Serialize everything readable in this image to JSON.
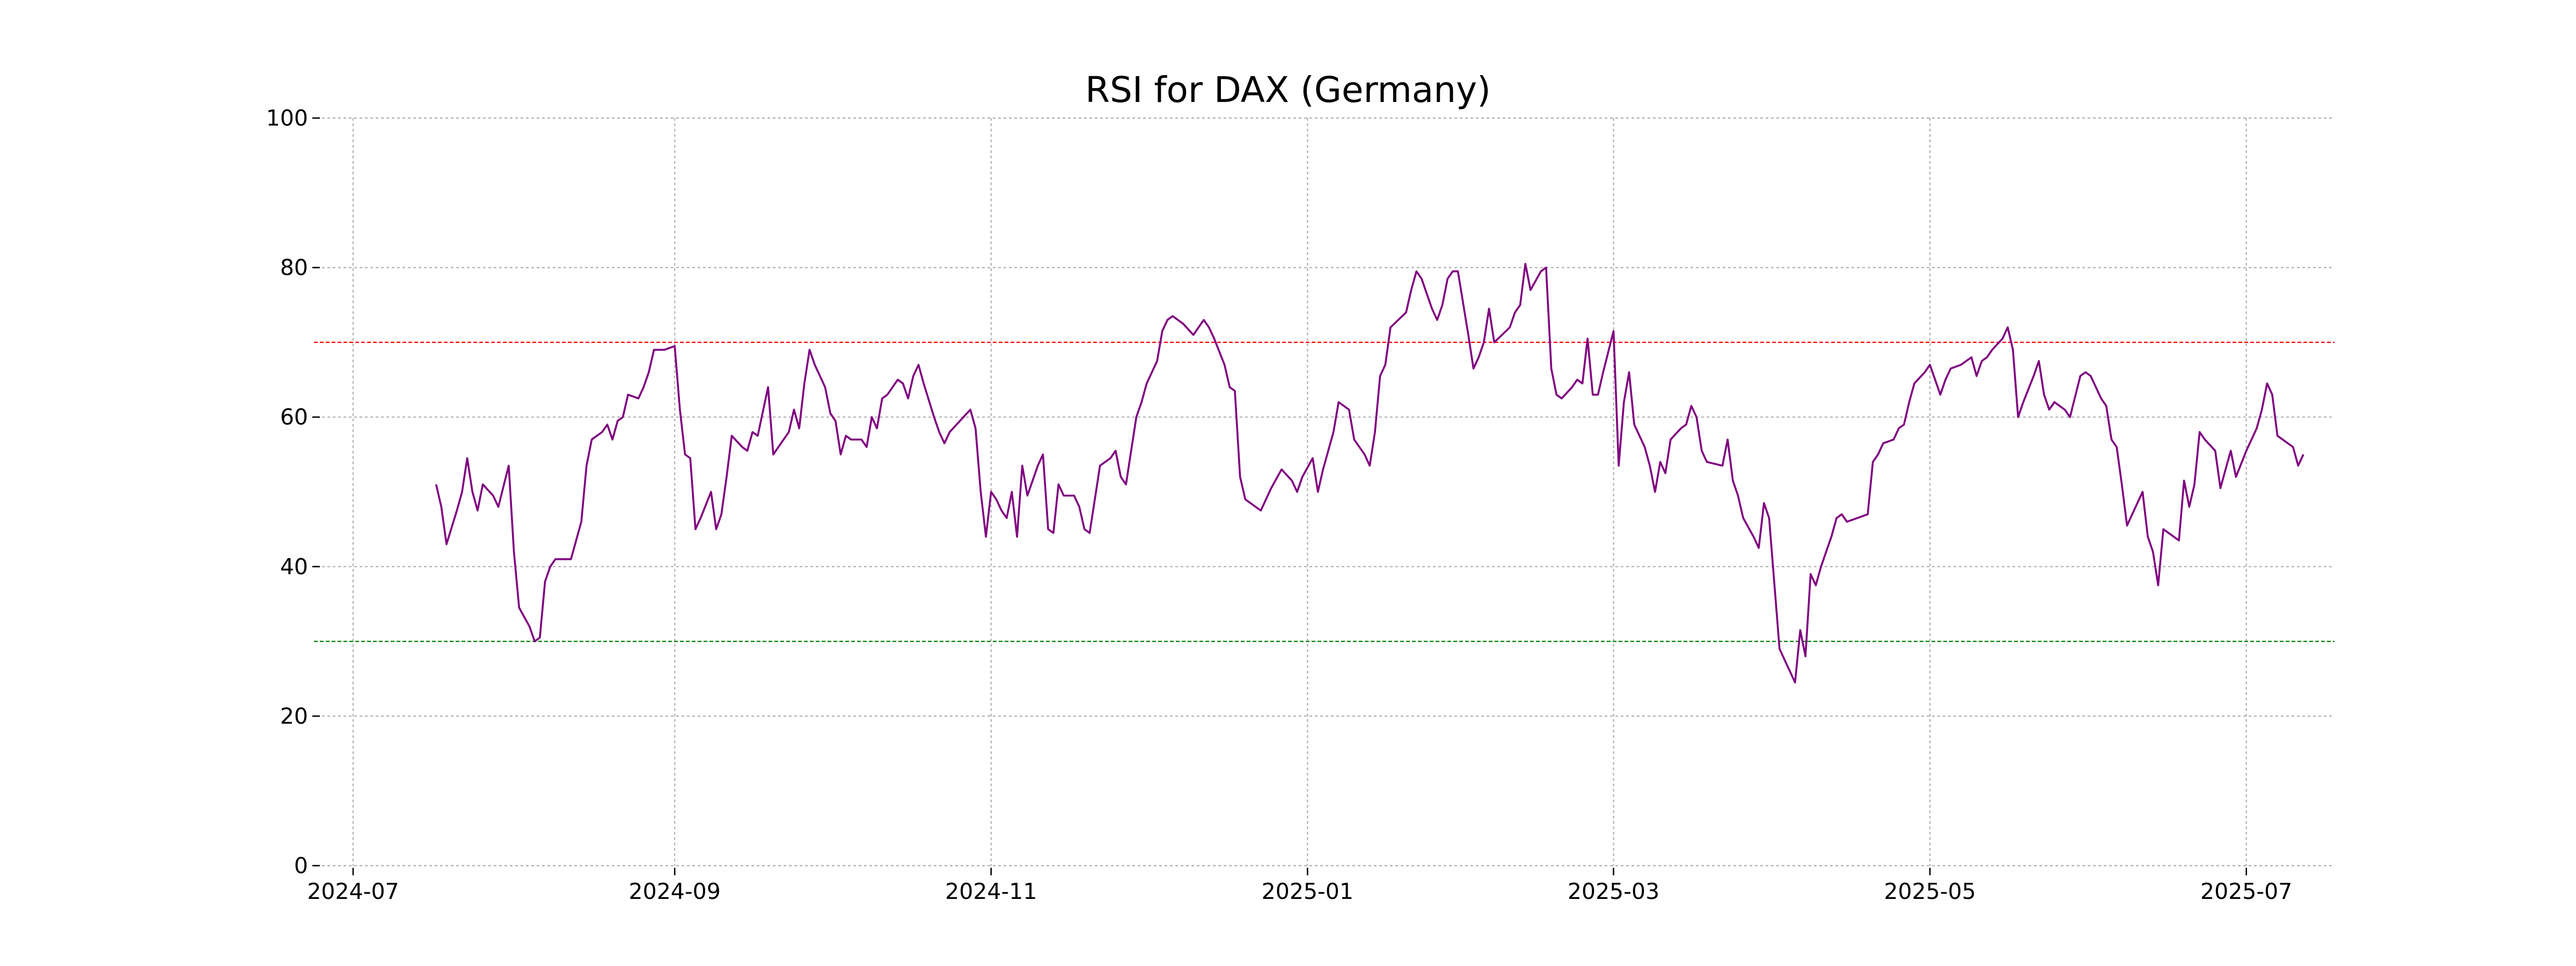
{
  "chart_data": {
    "type": "line",
    "title": "RSI for DAX (Germany)",
    "xlabel": "",
    "ylabel": "",
    "ylim": [
      0,
      100
    ],
    "yticks": [
      0,
      20,
      40,
      60,
      80,
      100
    ],
    "ytick_labels": [
      "0",
      "20",
      "40",
      "60",
      "80",
      "100"
    ],
    "xlim_days": [
      -6,
      382
    ],
    "xticks": [
      {
        "label": "2024-07",
        "day": 0
      },
      {
        "label": "2024-09",
        "day": 62
      },
      {
        "label": "2024-11",
        "day": 123
      },
      {
        "label": "2025-01",
        "day": 184
      },
      {
        "label": "2025-03",
        "day": 243
      },
      {
        "label": "2025-05",
        "day": 304
      },
      {
        "label": "2025-07",
        "day": 365
      }
    ],
    "grid": true,
    "reference_lines": [
      {
        "name": "overbought",
        "value": 70,
        "color": "#ff0000"
      },
      {
        "name": "oversold",
        "value": 30,
        "color": "#008000"
      }
    ],
    "series": [
      {
        "name": "RSI",
        "color": "#800080",
        "points": [
          [
            16,
            51
          ],
          [
            17,
            48
          ],
          [
            18,
            43
          ],
          [
            20,
            47.5
          ],
          [
            21,
            50
          ],
          [
            22,
            54.5
          ],
          [
            23,
            50
          ],
          [
            24,
            47.5
          ],
          [
            25,
            51
          ],
          [
            27,
            49.5
          ],
          [
            28,
            48
          ],
          [
            30,
            53.5
          ],
          [
            31,
            42
          ],
          [
            32,
            34.5
          ],
          [
            34,
            32
          ],
          [
            35,
            30
          ],
          [
            36,
            30.5
          ],
          [
            37,
            38
          ],
          [
            38,
            40
          ],
          [
            39,
            41
          ],
          [
            42,
            41
          ],
          [
            44,
            46
          ],
          [
            45,
            53.5
          ],
          [
            46,
            57
          ],
          [
            48,
            58
          ],
          [
            49,
            59
          ],
          [
            50,
            57
          ],
          [
            51,
            59.5
          ],
          [
            52,
            60
          ],
          [
            53,
            63
          ],
          [
            55,
            62.5
          ],
          [
            56,
            64
          ],
          [
            57,
            66
          ],
          [
            58,
            69
          ],
          [
            59,
            69
          ],
          [
            60,
            69
          ],
          [
            62,
            69.5
          ],
          [
            63,
            61
          ],
          [
            64,
            55
          ],
          [
            65,
            54.5
          ],
          [
            66,
            45
          ],
          [
            67,
            46.5
          ],
          [
            69,
            50
          ],
          [
            70,
            45
          ],
          [
            71,
            47
          ],
          [
            72,
            52
          ],
          [
            73,
            57.5
          ],
          [
            75,
            56
          ],
          [
            76,
            55.5
          ],
          [
            77,
            58
          ],
          [
            78,
            57.5
          ],
          [
            80,
            64
          ],
          [
            81,
            55
          ],
          [
            82,
            56
          ],
          [
            84,
            58
          ],
          [
            85,
            61
          ],
          [
            86,
            58.5
          ],
          [
            87,
            64.5
          ],
          [
            88,
            69
          ],
          [
            89,
            67
          ],
          [
            91,
            64
          ],
          [
            92,
            60.5
          ],
          [
            93,
            59.5
          ],
          [
            94,
            55
          ],
          [
            95,
            57.5
          ],
          [
            96,
            57
          ],
          [
            98,
            57
          ],
          [
            99,
            56
          ],
          [
            100,
            60
          ],
          [
            101,
            58.5
          ],
          [
            102,
            62.5
          ],
          [
            103,
            63
          ],
          [
            105,
            65
          ],
          [
            106,
            64.5
          ],
          [
            107,
            62.5
          ],
          [
            108,
            65.5
          ],
          [
            109,
            67
          ],
          [
            110,
            64.5
          ],
          [
            112,
            60
          ],
          [
            113,
            58
          ],
          [
            114,
            56.5
          ],
          [
            115,
            58
          ],
          [
            117,
            59.5
          ],
          [
            119,
            61
          ],
          [
            120,
            58.5
          ],
          [
            121,
            50
          ],
          [
            122,
            44
          ],
          [
            123,
            50
          ],
          [
            124,
            49
          ],
          [
            125,
            47.5
          ],
          [
            126,
            46.5
          ],
          [
            127,
            50
          ],
          [
            128,
            44
          ],
          [
            129,
            53.5
          ],
          [
            130,
            49.5
          ],
          [
            132,
            53.5
          ],
          [
            133,
            55
          ],
          [
            134,
            45
          ],
          [
            135,
            44.5
          ],
          [
            136,
            51
          ],
          [
            137,
            49.5
          ],
          [
            139,
            49.5
          ],
          [
            140,
            48
          ],
          [
            141,
            45
          ],
          [
            142,
            44.5
          ],
          [
            144,
            53.5
          ],
          [
            146,
            54.5
          ],
          [
            147,
            55.5
          ],
          [
            148,
            52
          ],
          [
            149,
            51
          ],
          [
            151,
            60
          ],
          [
            152,
            62
          ],
          [
            153,
            64.5
          ],
          [
            154,
            66
          ],
          [
            155,
            67.5
          ],
          [
            156,
            71.5
          ],
          [
            157,
            73
          ],
          [
            158,
            73.5
          ],
          [
            160,
            72.5
          ],
          [
            162,
            71
          ],
          [
            163,
            72
          ],
          [
            164,
            73
          ],
          [
            165,
            72
          ],
          [
            166,
            70.5
          ],
          [
            168,
            67
          ],
          [
            169,
            64
          ],
          [
            170,
            63.5
          ],
          [
            171,
            52
          ],
          [
            172,
            49
          ],
          [
            174,
            48
          ],
          [
            175,
            47.5
          ],
          [
            177,
            50.5
          ],
          [
            179,
            53
          ],
          [
            181,
            51.5
          ],
          [
            182,
            50
          ],
          [
            183,
            52
          ],
          [
            185,
            54.5
          ],
          [
            186,
            50
          ],
          [
            187,
            53
          ],
          [
            189,
            58
          ],
          [
            190,
            62
          ],
          [
            192,
            61
          ],
          [
            193,
            57
          ],
          [
            195,
            55
          ],
          [
            196,
            53.5
          ],
          [
            197,
            58
          ],
          [
            198,
            65.5
          ],
          [
            199,
            67
          ],
          [
            200,
            72
          ],
          [
            203,
            74
          ],
          [
            204,
            77
          ],
          [
            205,
            79.5
          ],
          [
            206,
            78.5
          ],
          [
            207,
            76.5
          ],
          [
            208,
            74.5
          ],
          [
            209,
            73
          ],
          [
            210,
            75
          ],
          [
            211,
            78.5
          ],
          [
            212,
            79.5
          ],
          [
            213,
            79.5
          ],
          [
            215,
            71
          ],
          [
            216,
            66.5
          ],
          [
            217,
            68
          ],
          [
            218,
            70
          ],
          [
            219,
            74.5
          ],
          [
            220,
            70
          ],
          [
            223,
            72
          ],
          [
            224,
            74
          ],
          [
            225,
            75
          ],
          [
            226,
            80.5
          ],
          [
            227,
            77
          ],
          [
            229,
            79.5
          ],
          [
            230,
            80
          ],
          [
            231,
            66.5
          ],
          [
            232,
            63
          ],
          [
            233,
            62.5
          ],
          [
            235,
            64
          ],
          [
            236,
            65
          ],
          [
            237,
            64.5
          ],
          [
            238,
            70.5
          ],
          [
            239,
            63
          ],
          [
            240,
            63
          ],
          [
            241,
            66
          ],
          [
            243,
            71.5
          ],
          [
            244,
            53.5
          ],
          [
            245,
            62
          ],
          [
            246,
            66
          ],
          [
            247,
            59
          ],
          [
            248,
            57.5
          ],
          [
            249,
            56
          ],
          [
            250,
            53.5
          ],
          [
            251,
            50
          ],
          [
            252,
            54
          ],
          [
            253,
            52.5
          ],
          [
            254,
            57
          ],
          [
            256,
            58.5
          ],
          [
            257,
            59
          ],
          [
            258,
            61.5
          ],
          [
            259,
            60
          ],
          [
            260,
            55.5
          ],
          [
            261,
            54
          ],
          [
            264,
            53.5
          ],
          [
            265,
            57
          ],
          [
            266,
            51.5
          ],
          [
            267,
            49.5
          ],
          [
            268,
            46.5
          ],
          [
            270,
            44
          ],
          [
            271,
            42.5
          ],
          [
            272,
            48.5
          ],
          [
            273,
            46.5
          ],
          [
            275,
            29
          ],
          [
            276,
            27.5
          ],
          [
            277,
            26
          ],
          [
            278,
            24.5
          ],
          [
            279,
            31.5
          ],
          [
            280,
            28
          ],
          [
            281,
            39
          ],
          [
            282,
            37.5
          ],
          [
            283,
            40
          ],
          [
            285,
            44
          ],
          [
            286,
            46.5
          ],
          [
            287,
            47
          ],
          [
            288,
            46
          ],
          [
            290,
            46.5
          ],
          [
            292,
            47
          ],
          [
            293,
            54
          ],
          [
            294,
            55
          ],
          [
            295,
            56.5
          ],
          [
            297,
            57
          ],
          [
            298,
            58.5
          ],
          [
            299,
            59
          ],
          [
            300,
            62
          ],
          [
            301,
            64.5
          ],
          [
            303,
            66
          ],
          [
            304,
            67
          ],
          [
            305,
            65
          ],
          [
            306,
            63
          ],
          [
            307,
            65
          ],
          [
            308,
            66.5
          ],
          [
            310,
            67
          ],
          [
            311,
            67.5
          ],
          [
            312,
            68
          ],
          [
            313,
            65.5
          ],
          [
            314,
            67.5
          ],
          [
            315,
            68
          ],
          [
            316,
            69
          ],
          [
            318,
            70.5
          ],
          [
            319,
            72
          ],
          [
            320,
            69
          ],
          [
            321,
            60
          ],
          [
            322,
            62
          ],
          [
            324,
            65.5
          ],
          [
            325,
            67.5
          ],
          [
            326,
            63
          ],
          [
            327,
            61
          ],
          [
            328,
            62
          ],
          [
            330,
            61
          ],
          [
            331,
            60
          ],
          [
            333,
            65.5
          ],
          [
            334,
            66
          ],
          [
            335,
            65.5
          ],
          [
            336,
            64
          ],
          [
            337,
            62.5
          ],
          [
            338,
            61.5
          ],
          [
            339,
            57
          ],
          [
            340,
            56
          ],
          [
            341,
            51
          ],
          [
            342,
            45.5
          ],
          [
            343,
            47
          ],
          [
            345,
            50
          ],
          [
            346,
            44
          ],
          [
            347,
            42
          ],
          [
            348,
            37.5
          ],
          [
            349,
            45
          ],
          [
            352,
            43.5
          ],
          [
            353,
            51.5
          ],
          [
            354,
            48
          ],
          [
            355,
            51
          ],
          [
            356,
            58
          ],
          [
            357,
            57
          ],
          [
            359,
            55.5
          ],
          [
            360,
            50.5
          ],
          [
            361,
            53
          ],
          [
            362,
            55.5
          ],
          [
            363,
            52
          ],
          [
            365,
            55.5
          ],
          [
            366,
            57
          ],
          [
            367,
            58.5
          ],
          [
            368,
            61
          ],
          [
            369,
            64.5
          ],
          [
            370,
            63
          ],
          [
            371,
            57.5
          ],
          [
            374,
            56
          ],
          [
            375,
            53.5
          ],
          [
            376,
            55
          ]
        ]
      }
    ]
  }
}
